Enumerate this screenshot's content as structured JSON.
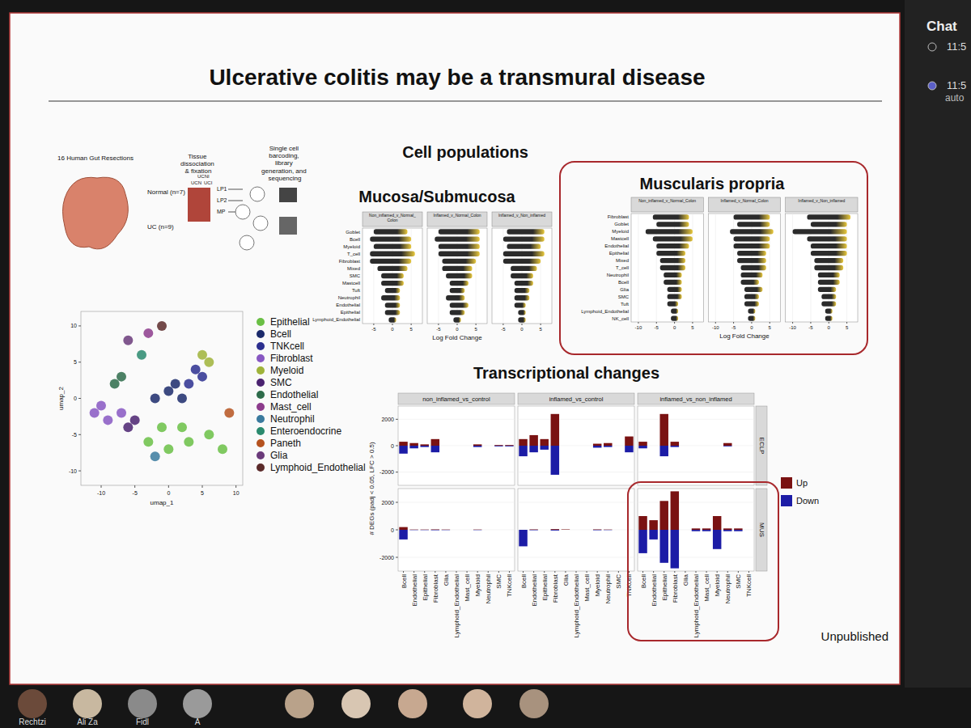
{
  "slide": {
    "title": "Ulcerative colitis may be a transmural disease",
    "footer": "Unpublished",
    "section_cells": "Cell populations",
    "section_tx": "Transcriptional changes",
    "schematic": {
      "cohort": "16 Human Gut Resections",
      "step2": "Tissue dissociation & fixation",
      "step3": "Single cell barcoding, library generation, and sequencing",
      "normal": "Normal (n=7)",
      "uc": "UC (n=9)",
      "groups": [
        "UCN",
        "UCNI",
        "UCI"
      ],
      "layers": [
        "LP1",
        "LP2",
        "MP"
      ]
    }
  },
  "screen": {
    "chat_title": "Chat",
    "chat_times": [
      "11:5",
      "11:5"
    ],
    "chat_note": "auto",
    "participants": [
      "Rechtzi",
      "Ali Za",
      "Fidl",
      "A"
    ]
  },
  "chart_data": [
    {
      "type": "scatter",
      "x_label": "umap_1",
      "y_label": "umap_2",
      "xlim": [
        -13,
        11
      ],
      "ylim": [
        -12,
        12
      ],
      "xticks": [
        -10,
        -5,
        0,
        5,
        10
      ],
      "yticks": [
        -10,
        -5,
        0,
        5,
        10
      ],
      "legend": "right",
      "marker": "circle",
      "series": [
        {
          "name": "Epithelial",
          "color": "#6abf45",
          "x": [
            -3,
            0,
            3,
            6,
            8,
            -1,
            2
          ],
          "values": [
            -6,
            -7,
            -6,
            -5,
            -7,
            -4,
            -4
          ]
        },
        {
          "name": "Bcell",
          "color": "#1b2a6b",
          "x": [
            -2,
            0,
            2,
            1
          ],
          "values": [
            0,
            1,
            0,
            2
          ]
        },
        {
          "name": "TNKcell",
          "color": "#2c2f8f",
          "x": [
            3,
            4,
            5
          ],
          "values": [
            2,
            4,
            3
          ]
        },
        {
          "name": "Fibroblast",
          "color": "#8757c2",
          "x": [
            -11,
            -9,
            -10,
            -7
          ],
          "values": [
            -2,
            -3,
            -1,
            -2
          ]
        },
        {
          "name": "Myeloid",
          "color": "#9fb33a",
          "x": [
            5,
            6
          ],
          "values": [
            6,
            5
          ]
        },
        {
          "name": "SMC",
          "color": "#4a2270",
          "x": [
            -6,
            -5
          ],
          "values": [
            -4,
            -3
          ]
        },
        {
          "name": "Endothelial",
          "color": "#2d6b4a",
          "x": [
            -8,
            -7
          ],
          "values": [
            2,
            3
          ]
        },
        {
          "name": "Mast_cell",
          "color": "#8c3b8c",
          "x": [
            -3
          ],
          "values": [
            9
          ]
        },
        {
          "name": "Neutrophil",
          "color": "#3a7a9e",
          "x": [
            -2
          ],
          "values": [
            -8
          ]
        },
        {
          "name": "Enteroendocrine",
          "color": "#2a8a6e",
          "x": [
            -4
          ],
          "values": [
            6
          ]
        },
        {
          "name": "Paneth",
          "color": "#b5521f",
          "x": [
            9
          ],
          "values": [
            -2
          ]
        },
        {
          "name": "Glia",
          "color": "#6a3a7a",
          "x": [
            -6
          ],
          "values": [
            8
          ]
        },
        {
          "name": "Lymphoid_Endothelial",
          "color": "#5a2a2a",
          "x": [
            -1
          ],
          "values": [
            10
          ]
        }
      ]
    },
    {
      "type": "range",
      "orientation": "horizontal",
      "title": "Mucosa/Submucosa",
      "x_label": "Log Fold Change",
      "xlim": [
        -8,
        8
      ],
      "xticks": [
        -5,
        0,
        5
      ],
      "categories": [
        "Goblet",
        "Bcell",
        "Myeloid",
        "T_cell",
        "Fibroblast",
        "Mixed",
        "SMC",
        "Mastcell",
        "Tuft",
        "Neutrophil",
        "Endothelial",
        "Epithelial",
        "Lymphoid_Endothelial"
      ],
      "series": [
        {
          "name": "Non_inflamed_v_Normal_Colon",
          "color": "#2b2b2b",
          "values": [
            [
              -5,
              4
            ],
            [
              -6,
              5
            ],
            [
              -5,
              5
            ],
            [
              -6,
              6
            ],
            [
              -6,
              5
            ],
            [
              -4,
              4
            ],
            [
              -3,
              3
            ],
            [
              -3,
              3
            ],
            [
              -2,
              2
            ],
            [
              -3,
              2
            ],
            [
              -2,
              2
            ],
            [
              -2,
              2
            ],
            [
              -1,
              1
            ]
          ]
        },
        {
          "name": "Inflamed_v_Normal_Colon",
          "color": "#2b2b2b",
          "values": [
            [
              -5,
              6
            ],
            [
              -6,
              6
            ],
            [
              -5,
              6
            ],
            [
              -5,
              6
            ],
            [
              -4,
              5
            ],
            [
              -4,
              4
            ],
            [
              -3,
              4
            ],
            [
              -2,
              3
            ],
            [
              -2,
              2
            ],
            [
              -3,
              2
            ],
            [
              -2,
              3
            ],
            [
              -2,
              2
            ],
            [
              -1,
              1
            ]
          ]
        },
        {
          "name": "Inflamed_v_Non_inflamed",
          "color": "#2b2b2b",
          "values": [
            [
              -4,
              6
            ],
            [
              -5,
              6
            ],
            [
              -4,
              5
            ],
            [
              -5,
              6
            ],
            [
              -5,
              5
            ],
            [
              -3,
              4
            ],
            [
              -3,
              3
            ],
            [
              -2,
              3
            ],
            [
              -2,
              2
            ],
            [
              -2,
              2
            ],
            [
              -2,
              1
            ],
            [
              -1,
              1
            ],
            [
              -1,
              1
            ]
          ]
        }
      ]
    },
    {
      "type": "range",
      "orientation": "horizontal",
      "title": "Muscularis propria",
      "x_label": "Log Fold Change",
      "xlim": [
        -12,
        8
      ],
      "xticks": [
        -10,
        -5,
        0,
        5
      ],
      "categories": [
        "Fibroblast",
        "Goblet",
        "Myeloid",
        "Mastcell",
        "Endothelial",
        "Epithelial",
        "Mixed",
        "T_cell",
        "Neutrophil",
        "Bcell",
        "Glia",
        "SMC",
        "Tuft",
        "Lymphoid_Endothelial",
        "NK_cell"
      ],
      "series": [
        {
          "name": "Non_inflamed_v_Normal_Colon",
          "color": "#2b2b2b",
          "values": [
            [
              -6,
              4
            ],
            [
              -5,
              4
            ],
            [
              -8,
              5
            ],
            [
              -6,
              5
            ],
            [
              -5,
              4
            ],
            [
              -5,
              3
            ],
            [
              -4,
              3
            ],
            [
              -4,
              3
            ],
            [
              -3,
              2
            ],
            [
              -3,
              2
            ],
            [
              -2,
              2
            ],
            [
              -2,
              2
            ],
            [
              -2,
              1
            ],
            [
              -1,
              1
            ],
            [
              -1,
              1
            ]
          ]
        },
        {
          "name": "Inflamed_v_Normal_Colon",
          "color": "#2b2b2b",
          "values": [
            [
              -5,
              5
            ],
            [
              -4,
              5
            ],
            [
              -6,
              6
            ],
            [
              -5,
              5
            ],
            [
              -5,
              5
            ],
            [
              -4,
              4
            ],
            [
              -4,
              4
            ],
            [
              -3,
              4
            ],
            [
              -3,
              3
            ],
            [
              -3,
              2
            ],
            [
              -2,
              3
            ],
            [
              -2,
              2
            ],
            [
              -2,
              2
            ],
            [
              -1,
              1
            ],
            [
              -1,
              1
            ]
          ]
        },
        {
          "name": "Inflamed_v_Non_inflamed",
          "color": "#2b2b2b",
          "values": [
            [
              -6,
              6
            ],
            [
              -5,
              5
            ],
            [
              -10,
              5
            ],
            [
              -6,
              5
            ],
            [
              -5,
              5
            ],
            [
              -5,
              5
            ],
            [
              -4,
              4
            ],
            [
              -4,
              4
            ],
            [
              -3,
              3
            ],
            [
              -3,
              3
            ],
            [
              -3,
              2
            ],
            [
              -2,
              2
            ],
            [
              -2,
              2
            ],
            [
              -1,
              1
            ],
            [
              -1,
              1
            ]
          ]
        }
      ]
    },
    {
      "type": "bar",
      "stacked": true,
      "legend": "right",
      "y_label": "# DEGs (padj < 0.05, LFC > 0.5)",
      "ylim": [
        -3000,
        3000
      ],
      "yticks": [
        -2000,
        0,
        2000
      ],
      "categories": [
        "Bcell",
        "Endothelial",
        "Epithelial",
        "Fibroblast",
        "Glia",
        "Lymphoid_Endothelial",
        "Mast_cell",
        "Myeloid",
        "Neutrophil",
        "SMC",
        "TNKcell"
      ],
      "columns": [
        "non_inflamed_vs_control",
        "inflamed_vs_control",
        "inflamed_vs_non_inflamed"
      ],
      "rows": [
        "ECLP",
        "MUS"
      ],
      "panels": [
        [
          {
            "series": [
              {
                "name": "Up",
                "color": "#7a1212",
                "values": [
                  300,
                  200,
                  100,
                  500,
                  0,
                  0,
                  0,
                  100,
                  0,
                  50,
                  50
                ]
              },
              {
                "name": "Down",
                "color": "#1c1ca6",
                "values": [
                  -600,
                  -200,
                  -100,
                  -500,
                  0,
                  0,
                  0,
                  -100,
                  0,
                  -50,
                  -50
                ]
              }
            ]
          },
          {
            "series": [
              {
                "name": "Up",
                "color": "#7a1212",
                "values": [
                  500,
                  800,
                  500,
                  2400,
                  0,
                  0,
                  0,
                  150,
                  200,
                  0,
                  700
                ]
              },
              {
                "name": "Down",
                "color": "#1c1ca6",
                "values": [
                  -800,
                  -500,
                  -300,
                  -2200,
                  0,
                  0,
                  0,
                  -150,
                  -100,
                  0,
                  -500
                ]
              }
            ]
          },
          {
            "series": [
              {
                "name": "Up",
                "color": "#7a1212",
                "values": [
                  300,
                  0,
                  2400,
                  300,
                  0,
                  0,
                  0,
                  0,
                  200,
                  0,
                  0
                ]
              },
              {
                "name": "Down",
                "color": "#1c1ca6",
                "values": [
                  -200,
                  0,
                  -800,
                  -100,
                  0,
                  0,
                  0,
                  0,
                  -50,
                  0,
                  0
                ]
              }
            ]
          }
        ],
        [
          {
            "series": [
              {
                "name": "Up",
                "color": "#7a1212",
                "values": [
                  200,
                  20,
                  20,
                  30,
                  20,
                  0,
                  0,
                  20,
                  0,
                  0,
                  0
                ]
              },
              {
                "name": "Down",
                "color": "#1c1ca6",
                "values": [
                  -700,
                  -20,
                  -20,
                  -30,
                  -20,
                  0,
                  0,
                  -20,
                  0,
                  0,
                  0
                ]
              }
            ]
          },
          {
            "series": [
              {
                "name": "Up",
                "color": "#7a1212",
                "values": [
                  0,
                  30,
                  0,
                  50,
                  30,
                  0,
                  0,
                  30,
                  20,
                  0,
                  0
                ]
              },
              {
                "name": "Down",
                "color": "#1c1ca6",
                "values": [
                  -1200,
                  -30,
                  0,
                  -50,
                  0,
                  0,
                  0,
                  -30,
                  -20,
                  0,
                  0
                ]
              }
            ]
          },
          {
            "series": [
              {
                "name": "Up",
                "color": "#7a1212",
                "values": [
                  1000,
                  700,
                  2100,
                  2800,
                  0,
                  100,
                  100,
                  1000,
                  100,
                  100,
                  0
                ]
              },
              {
                "name": "Down",
                "color": "#1c1ca6",
                "values": [
                  -1700,
                  -700,
                  -2400,
                  -2800,
                  0,
                  -100,
                  -100,
                  -1400,
                  -100,
                  -100,
                  0
                ]
              }
            ]
          }
        ]
      ]
    }
  ]
}
